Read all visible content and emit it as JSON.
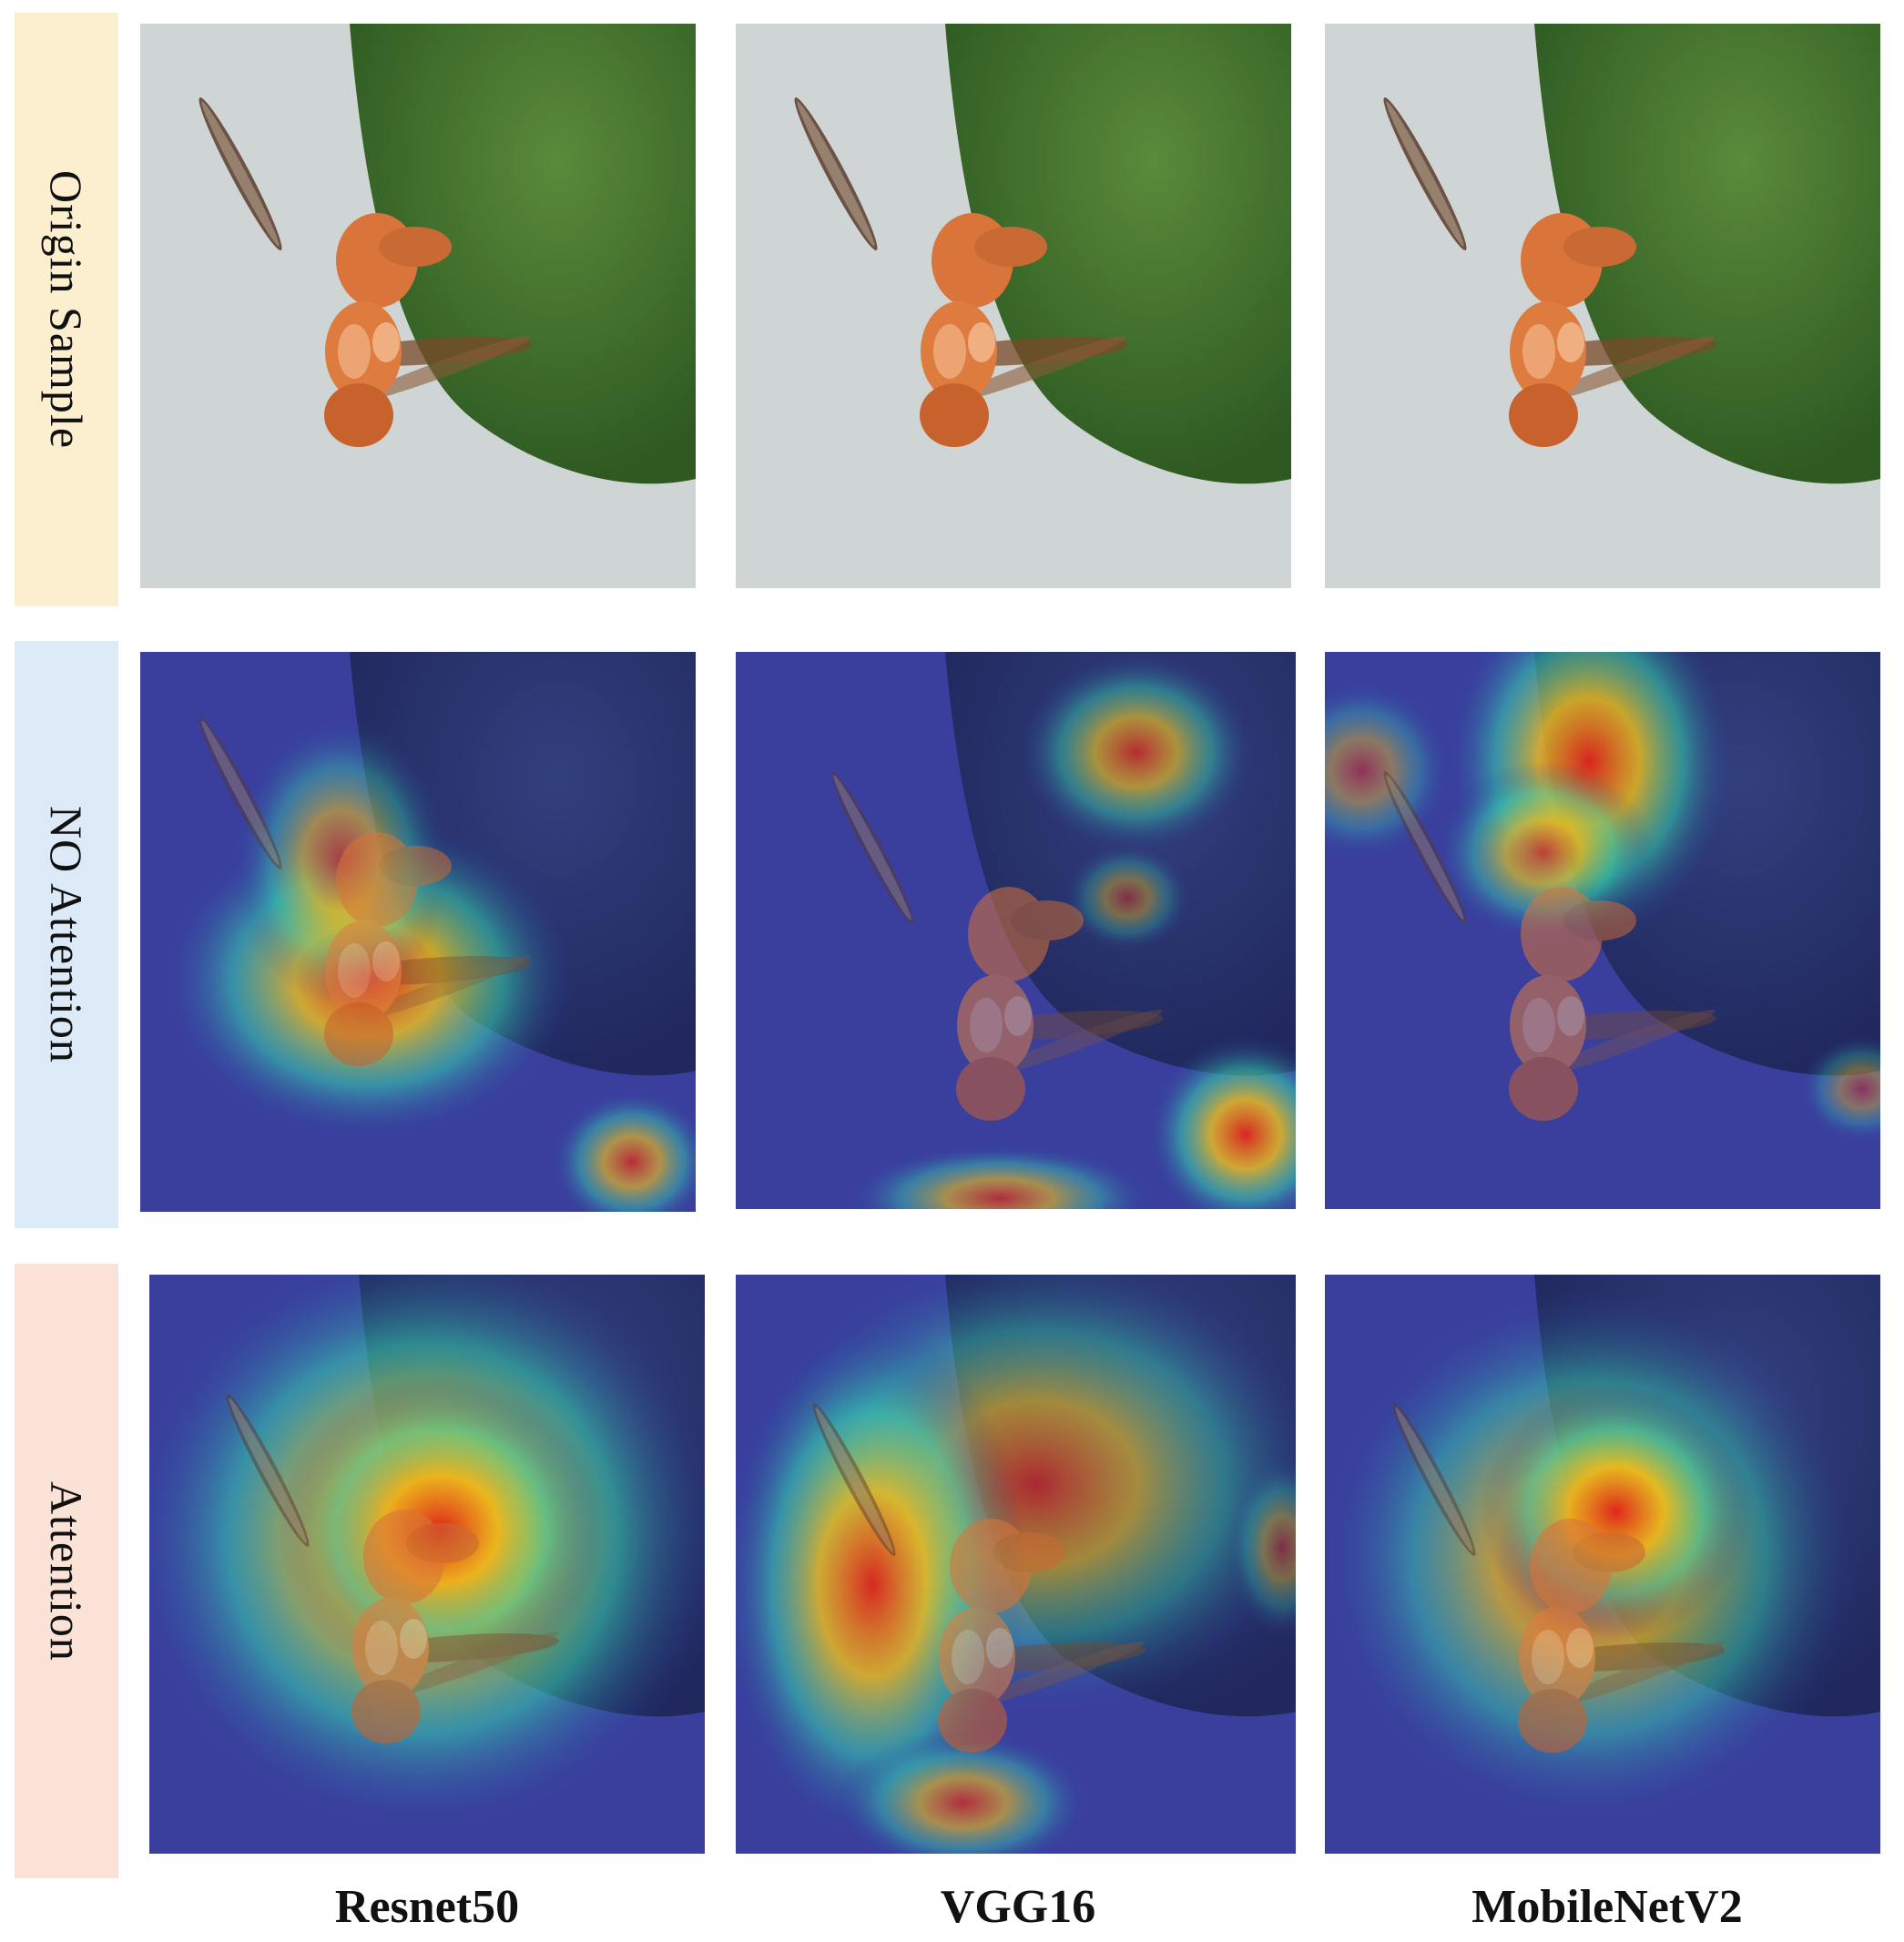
{
  "rows": [
    {
      "label": "Origin Sample"
    },
    {
      "label": "NO Attention"
    },
    {
      "label": "Attention"
    }
  ],
  "columns": [
    {
      "label": "Resnet50"
    },
    {
      "label": "VGG16"
    },
    {
      "label": "MobileNetV2"
    }
  ],
  "colors": {
    "origin_label_bg": "#fcefcf",
    "no_attention_label_bg": "#dce9f7",
    "attention_label_bg": "#fbe2d6",
    "heatmap_cold": "#2a2f9a",
    "heatmap_hot": "#e0241a"
  }
}
